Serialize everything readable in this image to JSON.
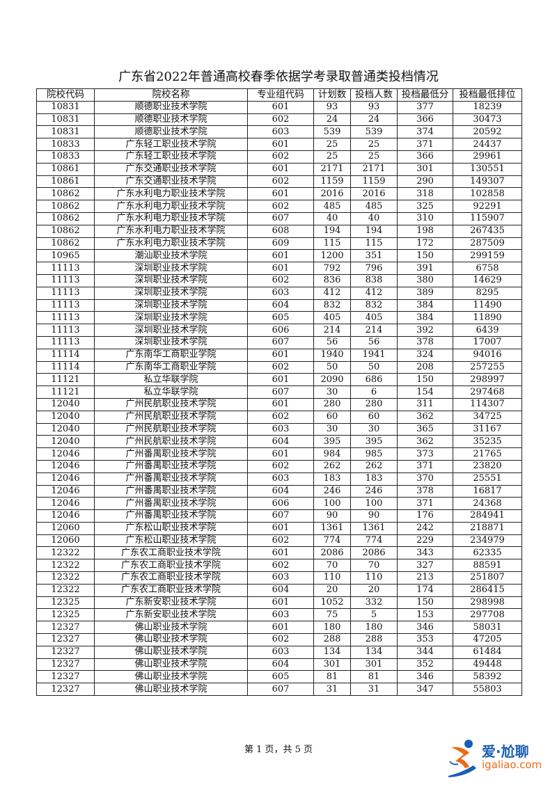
{
  "title": "广东省2022年普通高校春季依据学考录取普通类投档情况",
  "columns": [
    "院校代码",
    "院校名称",
    "专业组代码",
    "计划数",
    "投档人数",
    "投档最低分",
    "投档最低排位"
  ],
  "rows": [
    [
      "10831",
      "顺德职业技术学院",
      "601",
      "93",
      "93",
      "377",
      "18239"
    ],
    [
      "10831",
      "顺德职业技术学院",
      "602",
      "24",
      "24",
      "366",
      "30473"
    ],
    [
      "10831",
      "顺德职业技术学院",
      "603",
      "539",
      "539",
      "374",
      "20592"
    ],
    [
      "10833",
      "广东轻工职业技术学院",
      "601",
      "25",
      "25",
      "371",
      "24437"
    ],
    [
      "10833",
      "广东轻工职业技术学院",
      "602",
      "25",
      "25",
      "366",
      "29961"
    ],
    [
      "10861",
      "广东交通职业技术学院",
      "601",
      "2171",
      "2171",
      "301",
      "130551"
    ],
    [
      "10861",
      "广东交通职业技术学院",
      "602",
      "1159",
      "1159",
      "290",
      "149307"
    ],
    [
      "10862",
      "广东水利电力职业技术学院",
      "601",
      "2016",
      "2016",
      "318",
      "102858"
    ],
    [
      "10862",
      "广东水利电力职业技术学院",
      "602",
      "485",
      "485",
      "325",
      "92291"
    ],
    [
      "10862",
      "广东水利电力职业技术学院",
      "607",
      "40",
      "40",
      "310",
      "115907"
    ],
    [
      "10862",
      "广东水利电力职业技术学院",
      "608",
      "194",
      "194",
      "198",
      "267435"
    ],
    [
      "10862",
      "广东水利电力职业技术学院",
      "609",
      "115",
      "115",
      "172",
      "287509"
    ],
    [
      "10965",
      "潮汕职业技术学院",
      "601",
      "1200",
      "351",
      "150",
      "299159"
    ],
    [
      "11113",
      "深圳职业技术学院",
      "601",
      "792",
      "796",
      "391",
      "6758"
    ],
    [
      "11113",
      "深圳职业技术学院",
      "602",
      "836",
      "838",
      "380",
      "14629"
    ],
    [
      "11113",
      "深圳职业技术学院",
      "603",
      "412",
      "412",
      "389",
      "8295"
    ],
    [
      "11113",
      "深圳职业技术学院",
      "604",
      "832",
      "832",
      "384",
      "11490"
    ],
    [
      "11113",
      "深圳职业技术学院",
      "605",
      "405",
      "405",
      "384",
      "11890"
    ],
    [
      "11113",
      "深圳职业技术学院",
      "606",
      "214",
      "214",
      "392",
      "6439"
    ],
    [
      "11113",
      "深圳职业技术学院",
      "607",
      "56",
      "56",
      "378",
      "17007"
    ],
    [
      "11114",
      "广东南华工商职业学院",
      "601",
      "1940",
      "1941",
      "324",
      "94016"
    ],
    [
      "11114",
      "广东南华工商职业学院",
      "602",
      "50",
      "50",
      "208",
      "257255"
    ],
    [
      "11121",
      "私立华联学院",
      "601",
      "2090",
      "686",
      "150",
      "298997"
    ],
    [
      "11121",
      "私立华联学院",
      "607",
      "30",
      "6",
      "154",
      "297468"
    ],
    [
      "12040",
      "广州民航职业技术学院",
      "601",
      "280",
      "280",
      "311",
      "114307"
    ],
    [
      "12040",
      "广州民航职业技术学院",
      "602",
      "60",
      "60",
      "362",
      "34725"
    ],
    [
      "12040",
      "广州民航职业技术学院",
      "603",
      "30",
      "30",
      "365",
      "31167"
    ],
    [
      "12040",
      "广州民航职业技术学院",
      "604",
      "395",
      "395",
      "362",
      "35235"
    ],
    [
      "12046",
      "广州番禺职业技术学院",
      "601",
      "984",
      "985",
      "373",
      "21765"
    ],
    [
      "12046",
      "广州番禺职业技术学院",
      "602",
      "262",
      "262",
      "371",
      "23820"
    ],
    [
      "12046",
      "广州番禺职业技术学院",
      "603",
      "183",
      "183",
      "370",
      "25551"
    ],
    [
      "12046",
      "广州番禺职业技术学院",
      "604",
      "246",
      "246",
      "378",
      "16817"
    ],
    [
      "12046",
      "广州番禺职业技术学院",
      "606",
      "100",
      "100",
      "371",
      "24368"
    ],
    [
      "12046",
      "广州番禺职业技术学院",
      "607",
      "90",
      "90",
      "176",
      "284941"
    ],
    [
      "12060",
      "广东松山职业技术学院",
      "601",
      "1361",
      "1361",
      "242",
      "218871"
    ],
    [
      "12060",
      "广东松山职业技术学院",
      "602",
      "774",
      "774",
      "229",
      "234979"
    ],
    [
      "12322",
      "广东农工商职业技术学院",
      "601",
      "2086",
      "2086",
      "343",
      "62335"
    ],
    [
      "12322",
      "广东农工商职业技术学院",
      "602",
      "70",
      "70",
      "327",
      "88591"
    ],
    [
      "12322",
      "广东农工商职业技术学院",
      "603",
      "110",
      "110",
      "213",
      "251807"
    ],
    [
      "12322",
      "广东农工商职业技术学院",
      "604",
      "20",
      "20",
      "174",
      "286415"
    ],
    [
      "12325",
      "广东新安职业技术学院",
      "601",
      "1052",
      "332",
      "150",
      "298998"
    ],
    [
      "12325",
      "广东新安职业技术学院",
      "603",
      "75",
      "5",
      "153",
      "297708"
    ],
    [
      "12327",
      "佛山职业技术学院",
      "601",
      "180",
      "180",
      "346",
      "58031"
    ],
    [
      "12327",
      "佛山职业技术学院",
      "602",
      "288",
      "288",
      "353",
      "47205"
    ],
    [
      "12327",
      "佛山职业技术学院",
      "603",
      "134",
      "134",
      "344",
      "61484"
    ],
    [
      "12327",
      "佛山职业技术学院",
      "604",
      "301",
      "301",
      "352",
      "49448"
    ],
    [
      "12327",
      "佛山职业技术学院",
      "605",
      "81",
      "81",
      "346",
      "58392"
    ],
    [
      "12327",
      "佛山职业技术学院",
      "607",
      "31",
      "31",
      "347",
      "55803"
    ]
  ],
  "footer": "第 1 页，共 5 页",
  "watermark": {
    "cn": "爱·尬聊",
    "en": "igaliao.com",
    "colors": {
      "blue": "#1b5fb3",
      "orange": "#e86b16"
    }
  }
}
